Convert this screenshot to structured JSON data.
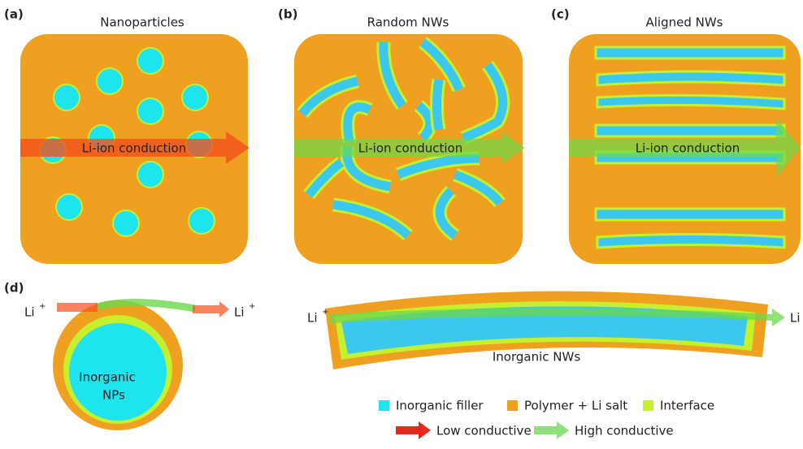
{
  "panels": [
    {
      "letter": "(a)",
      "title": "Nanoparticles",
      "arrow_label": "Li-ion conduction"
    },
    {
      "letter": "(b)",
      "title": "Random NWs",
      "arrow_label": "Li-ion conduction"
    },
    {
      "letter": "(c)",
      "title": "Aligned NWs",
      "arrow_label": "Li-ion conduction"
    }
  ],
  "panel_d": {
    "letter": "(d)",
    "li": "Li",
    "charge": "+",
    "np_label": [
      "Inorganic",
      "NPs"
    ],
    "nw_label": "Inorganic NWs"
  },
  "legend": [
    "Inorganic filler",
    "Polymer + Li salt",
    "Interface",
    "Low conductive",
    "High conductive"
  ]
}
